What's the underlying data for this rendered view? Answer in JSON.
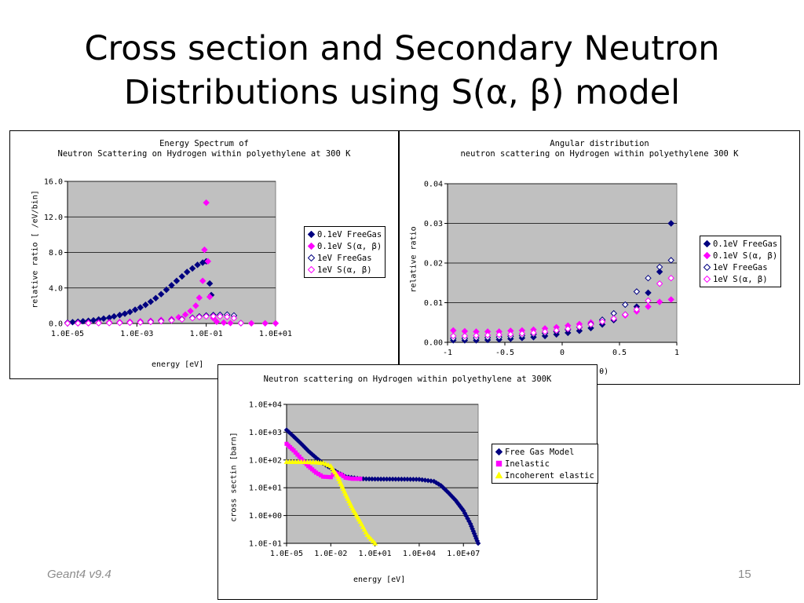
{
  "slide": {
    "title_line1": "Cross section and Secondary Neutron",
    "title_line2": "Distributions using S(α, β) model",
    "footer_left": "Geant4 v9.4",
    "page_number": "15"
  },
  "colors": {
    "plot_bg": "#c0c0c0",
    "navy": "#000080",
    "magenta": "#ff00ff",
    "yellow": "#ffff00",
    "grid": "#000000"
  },
  "chart_data": [
    {
      "id": "energy_spectrum",
      "type": "scatter",
      "title_line1": "Energy Spectrum of",
      "title_line2": "Neutron Scattering on Hydrogen within polyethylene at 300 K",
      "xlabel": "energy [eV]",
      "ylabel": "relative ratio [ /eV/bin]",
      "x_scale": "log",
      "xlim": [
        1e-05,
        10
      ],
      "ylim": [
        0,
        16
      ],
      "x_ticks": [
        "1.0E-05",
        "1.0E-03",
        "1.0E-01",
        "1.0E+01"
      ],
      "y_ticks": [
        "0.0",
        "4.0",
        "8.0",
        "12.0",
        "16.0"
      ],
      "grid": true,
      "legend_position": "right",
      "series": [
        {
          "name": "0.1eV FreeGas",
          "marker": "diamond-filled",
          "color": "#000080",
          "x": [
            1e-05,
            1.4e-05,
            2e-05,
            2.8e-05,
            4e-05,
            5.6e-05,
            7.9e-05,
            0.00011,
            0.00016,
            0.00022,
            0.00032,
            0.00045,
            0.00063,
            0.00089,
            0.00126,
            0.00178,
            0.0025,
            0.0035,
            0.005,
            0.0071,
            0.01,
            0.014,
            0.02,
            0.028,
            0.04,
            0.056,
            0.079,
            0.1,
            0.126,
            0.14
          ],
          "y": [
            0.1,
            0.15,
            0.2,
            0.25,
            0.3,
            0.35,
            0.45,
            0.55,
            0.65,
            0.8,
            0.95,
            1.1,
            1.3,
            1.55,
            1.8,
            2.1,
            2.45,
            2.85,
            3.3,
            3.8,
            4.3,
            4.8,
            5.3,
            5.8,
            6.2,
            6.6,
            6.85,
            7.0,
            4.5,
            3.2
          ]
        },
        {
          "name": "0.1eV S(α, β)",
          "marker": "diamond-filled",
          "color": "#ff00ff",
          "x": [
            1e-05,
            2e-05,
            4e-05,
            7.9e-05,
            0.00016,
            0.00032,
            0.00063,
            0.00126,
            0.0025,
            0.005,
            0.01,
            0.016,
            0.025,
            0.035,
            0.05,
            0.063,
            0.079,
            0.089,
            0.1,
            0.112,
            0.126,
            0.16,
            0.2,
            0.32,
            0.5,
            1.0,
            2.0,
            5.0,
            10.0
          ],
          "y": [
            0.05,
            0.06,
            0.08,
            0.1,
            0.13,
            0.16,
            0.2,
            0.25,
            0.3,
            0.4,
            0.5,
            0.7,
            1.0,
            1.4,
            2.0,
            2.9,
            4.8,
            8.3,
            13.6,
            7.0,
            3.0,
            0.6,
            0.2,
            0.1,
            0.05,
            0.03,
            0.02,
            0.02,
            0.02
          ]
        },
        {
          "name": "1eV FreeGas",
          "marker": "diamond-open",
          "color": "#000080",
          "x": [
            1e-05,
            2e-05,
            4e-05,
            7.9e-05,
            0.00016,
            0.00032,
            0.00063,
            0.00126,
            0.0025,
            0.005,
            0.01,
            0.02,
            0.04,
            0.063,
            0.1,
            0.16,
            0.25,
            0.4,
            0.63,
            1.0
          ],
          "y": [
            0.02,
            0.03,
            0.04,
            0.05,
            0.06,
            0.08,
            0.1,
            0.14,
            0.2,
            0.28,
            0.38,
            0.5,
            0.65,
            0.8,
            0.9,
            0.95,
            0.98,
            1.0,
            0.9,
            0.05
          ]
        },
        {
          "name": "1eV S(α, β)",
          "marker": "diamond-open",
          "color": "#ff00ff",
          "x": [
            1e-05,
            2e-05,
            4e-05,
            7.9e-05,
            0.00016,
            0.00032,
            0.00063,
            0.00126,
            0.0025,
            0.005,
            0.01,
            0.02,
            0.04,
            0.063,
            0.1,
            0.16,
            0.25,
            0.4,
            0.63,
            1.0
          ],
          "y": [
            0.02,
            0.02,
            0.03,
            0.04,
            0.05,
            0.07,
            0.09,
            0.12,
            0.17,
            0.24,
            0.33,
            0.45,
            0.6,
            0.72,
            0.8,
            0.82,
            0.8,
            0.75,
            0.6,
            0.05
          ]
        }
      ]
    },
    {
      "id": "angular_distribution",
      "type": "scatter",
      "title_line1": "Angular distribution",
      "title_line2": "neutron scattering on Hydrogen within polyethylene 300 K",
      "xlabel": "cos(θ)",
      "ylabel": "relative ratio",
      "xlim": [
        -1,
        1
      ],
      "ylim": [
        0,
        0.04
      ],
      "x_ticks": [
        "-1",
        "-0.5",
        "0",
        "0.5",
        "1"
      ],
      "y_ticks": [
        "0.00",
        "0.01",
        "0.02",
        "0.03",
        "0.04"
      ],
      "grid": true,
      "legend_position": "right",
      "series": [
        {
          "name": "0.1eV FreeGas",
          "marker": "diamond-filled",
          "color": "#000080",
          "x": [
            -0.95,
            -0.85,
            -0.75,
            -0.65,
            -0.55,
            -0.45,
            -0.35,
            -0.25,
            -0.15,
            -0.05,
            0.05,
            0.15,
            0.25,
            0.35,
            0.45,
            0.55,
            0.65,
            0.75,
            0.85,
            0.95
          ],
          "y": [
            0.0005,
            0.0005,
            0.0005,
            0.0006,
            0.0007,
            0.0009,
            0.0011,
            0.0013,
            0.0016,
            0.002,
            0.0024,
            0.0029,
            0.0036,
            0.0045,
            0.0056,
            0.007,
            0.009,
            0.0125,
            0.0178,
            0.03
          ]
        },
        {
          "name": "0.1eV S(α, β)",
          "marker": "diamond-filled",
          "color": "#ff00ff",
          "x": [
            -0.95,
            -0.85,
            -0.75,
            -0.65,
            -0.55,
            -0.45,
            -0.35,
            -0.25,
            -0.15,
            -0.05,
            0.05,
            0.15,
            0.25,
            0.35,
            0.45,
            0.55,
            0.65,
            0.75,
            0.85,
            0.95
          ],
          "y": [
            0.003,
            0.0028,
            0.0027,
            0.0027,
            0.0027,
            0.0029,
            0.003,
            0.0032,
            0.0035,
            0.0038,
            0.0042,
            0.0046,
            0.005,
            0.0055,
            0.006,
            0.0068,
            0.0078,
            0.009,
            0.0102,
            0.0108
          ]
        },
        {
          "name": "1eV FreeGas",
          "marker": "diamond-open",
          "color": "#000080",
          "x": [
            -0.95,
            -0.85,
            -0.75,
            -0.65,
            -0.55,
            -0.45,
            -0.35,
            -0.25,
            -0.15,
            -0.05,
            0.05,
            0.15,
            0.25,
            0.35,
            0.45,
            0.55,
            0.65,
            0.75,
            0.85,
            0.95
          ],
          "y": [
            0.001,
            0.001,
            0.0011,
            0.0012,
            0.0013,
            0.0015,
            0.0017,
            0.002,
            0.0023,
            0.0027,
            0.0032,
            0.0038,
            0.0046,
            0.0057,
            0.0073,
            0.0095,
            0.0128,
            0.0162,
            0.019,
            0.0207
          ]
        },
        {
          "name": "1eV S(α, β)",
          "marker": "diamond-open",
          "color": "#ff00ff",
          "x": [
            -0.95,
            -0.85,
            -0.75,
            -0.65,
            -0.55,
            -0.45,
            -0.35,
            -0.25,
            -0.15,
            -0.05,
            0.05,
            0.15,
            0.25,
            0.35,
            0.45,
            0.55,
            0.65,
            0.75,
            0.85,
            0.95
          ],
          "y": [
            0.0016,
            0.0016,
            0.0017,
            0.0018,
            0.0019,
            0.002,
            0.0022,
            0.0024,
            0.0027,
            0.003,
            0.0034,
            0.0039,
            0.0045,
            0.0052,
            0.006,
            0.007,
            0.0083,
            0.0105,
            0.0148,
            0.0162
          ]
        }
      ]
    },
    {
      "id": "cross_section",
      "type": "line",
      "title": "Neutron scattering on Hydrogen within polyethylene at 300K",
      "xlabel": "energy [eV]",
      "ylabel": "cross sectin [barn]",
      "x_scale": "log",
      "y_scale": "log",
      "xlim": [
        1e-05,
        100000000.0
      ],
      "ylim": [
        0.1,
        10000
      ],
      "x_ticks": [
        "1.0E-05",
        "1.0E-02",
        "1.0E+01",
        "1.0E+04",
        "1.0E+07"
      ],
      "y_ticks": [
        "1.0E-01",
        "1.0E+00",
        "1.0E+01",
        "1.0E+02",
        "1.0E+03",
        "1.0E+04"
      ],
      "grid": true,
      "legend_position": "right",
      "series": [
        {
          "name": "Free Gas Model",
          "marker": "diamond-filled",
          "color": "#000080",
          "x": [
            1e-05,
            3e-05,
            0.0001,
            0.0003,
            0.001,
            0.003,
            0.01,
            0.03,
            0.1,
            1.0,
            10.0,
            100.0,
            1000.0,
            10000.0,
            100000.0,
            300000.0,
            1000000.0,
            3000000.0,
            10000000.0,
            30000000.0,
            100000000.0
          ],
          "y": [
            1200,
            700,
            380,
            210,
            120,
            75,
            50,
            35,
            25,
            21,
            20.5,
            20.4,
            20.3,
            20,
            17,
            12,
            6.5,
            3.5,
            1.5,
            0.5,
            0.1
          ]
        },
        {
          "name": "Inelastic",
          "marker": "square-filled",
          "color": "#ff00ff",
          "x": [
            1e-05,
            3e-05,
            0.0001,
            0.0003,
            0.001,
            0.003,
            0.01,
            0.02,
            0.05,
            0.1,
            0.3,
            1.0
          ],
          "y": [
            380,
            220,
            110,
            60,
            35,
            25,
            24,
            35,
            30,
            23,
            21,
            21
          ]
        },
        {
          "name": "Incoherent elastic",
          "marker": "triangle-filled",
          "color": "#ffff00",
          "x": [
            1e-05,
            0.0001,
            0.001,
            0.003,
            0.01,
            0.03,
            0.1,
            0.3,
            1.0,
            3.0,
            10.0
          ],
          "y": [
            85,
            85,
            82,
            78,
            60,
            25,
            6,
            1.8,
            0.6,
            0.2,
            0.1
          ]
        }
      ]
    }
  ]
}
